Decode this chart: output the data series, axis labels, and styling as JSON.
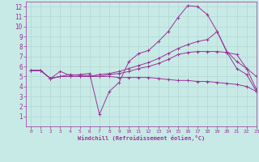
{
  "xlabel": "Windchill (Refroidissement éolien,°C)",
  "xlim": [
    -0.5,
    23
  ],
  "ylim": [
    0,
    12.5
  ],
  "xticks": [
    0,
    1,
    2,
    3,
    4,
    5,
    6,
    7,
    8,
    9,
    10,
    11,
    12,
    13,
    14,
    15,
    16,
    17,
    18,
    19,
    20,
    21,
    22,
    23
  ],
  "yticks": [
    1,
    2,
    3,
    4,
    5,
    6,
    7,
    8,
    9,
    10,
    11,
    12
  ],
  "bg_color": "#c8eae6",
  "line_color": "#993399",
  "grid_color": "#b0d8d4",
  "lines": [
    {
      "x": [
        0,
        1,
        2,
        3,
        4,
        5,
        6,
        7,
        8,
        9,
        10,
        11,
        12,
        13,
        14,
        15,
        16,
        17,
        18,
        19,
        20,
        21,
        22,
        23
      ],
      "y": [
        5.6,
        5.6,
        4.8,
        5.5,
        5.1,
        5.2,
        5.3,
        1.2,
        3.5,
        4.4,
        6.5,
        7.3,
        7.6,
        8.5,
        9.5,
        10.9,
        12.1,
        12.0,
        11.2,
        9.5,
        7.4,
        5.8,
        5.2,
        3.5
      ]
    },
    {
      "x": [
        0,
        1,
        2,
        3,
        4,
        5,
        6,
        7,
        8,
        9,
        10,
        11,
        12,
        13,
        14,
        15,
        16,
        17,
        18,
        19,
        20,
        21,
        22,
        23
      ],
      "y": [
        5.6,
        5.6,
        4.8,
        5.0,
        5.0,
        5.0,
        5.0,
        5.2,
        5.3,
        5.5,
        5.8,
        6.1,
        6.4,
        6.8,
        7.3,
        7.8,
        8.2,
        8.5,
        8.7,
        9.5,
        7.5,
        6.5,
        5.8,
        3.7
      ]
    },
    {
      "x": [
        0,
        1,
        2,
        3,
        4,
        5,
        6,
        7,
        8,
        9,
        10,
        11,
        12,
        13,
        14,
        15,
        16,
        17,
        18,
        19,
        20,
        21,
        22,
        23
      ],
      "y": [
        5.6,
        5.6,
        4.8,
        5.0,
        5.0,
        5.0,
        5.0,
        5.0,
        5.2,
        5.3,
        5.5,
        5.8,
        6.0,
        6.3,
        6.7,
        7.2,
        7.4,
        7.5,
        7.5,
        7.5,
        7.4,
        7.2,
        5.8,
        5.0
      ]
    },
    {
      "x": [
        0,
        1,
        2,
        3,
        4,
        5,
        6,
        7,
        8,
        9,
        10,
        11,
        12,
        13,
        14,
        15,
        16,
        17,
        18,
        19,
        20,
        21,
        22,
        23
      ],
      "y": [
        5.6,
        5.6,
        4.8,
        5.0,
        5.2,
        5.1,
        5.1,
        5.0,
        5.0,
        4.9,
        4.9,
        4.9,
        4.9,
        4.8,
        4.7,
        4.6,
        4.6,
        4.5,
        4.5,
        4.4,
        4.3,
        4.2,
        4.0,
        3.5
      ]
    }
  ]
}
